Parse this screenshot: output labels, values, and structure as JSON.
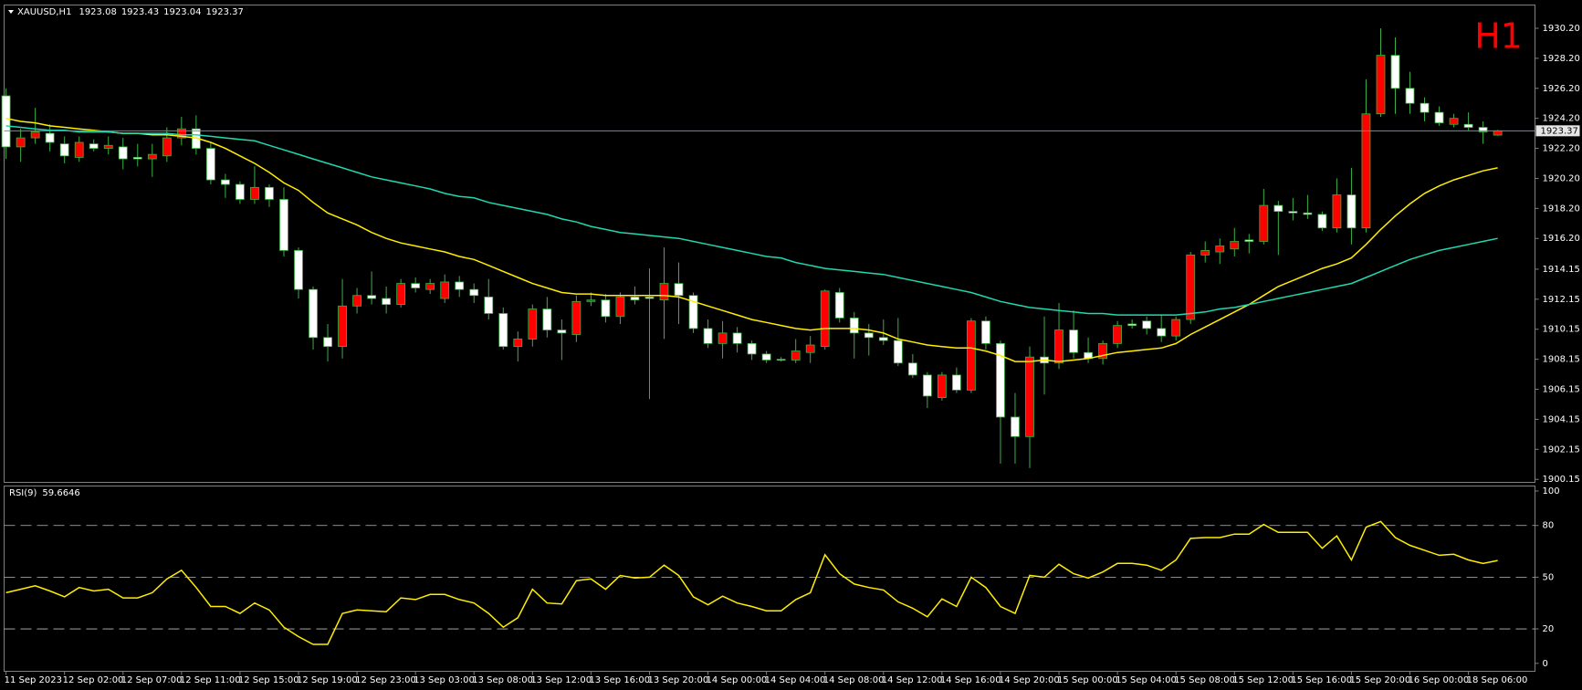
{
  "chart_data": [
    {
      "type": "candlestick",
      "title": "XAUUSD,H1",
      "timeframe": "H1",
      "categories": [
        "11 Sep 2023",
        null,
        null,
        null,
        "12 Sep 02:00",
        null,
        null,
        null,
        "12 Sep 07:00",
        null,
        null,
        null,
        "12 Sep 11:00",
        null,
        null,
        null,
        "12 Sep 15:00",
        null,
        null,
        null,
        "12 Sep 19:00",
        null,
        null,
        null,
        "12 Sep 23:00",
        null,
        null,
        null,
        "13 Sep 03:00",
        null,
        null,
        null,
        "13 Sep 08:00",
        null,
        null,
        null,
        "13 Sep 12:00",
        null,
        null,
        null,
        "13 Sep 16:00",
        null,
        null,
        null,
        "13 Sep 20:00",
        null,
        null,
        null,
        "14 Sep 00:00",
        null,
        null,
        null,
        "14 Sep 04:00",
        null,
        null,
        null,
        "14 Sep 08:00",
        null,
        null,
        null,
        "14 Sep 12:00",
        null,
        null,
        null,
        "14 Sep 16:00",
        null,
        null,
        null,
        "14 Sep 20:00",
        null,
        null,
        null,
        "15 Sep 00:00",
        null,
        null,
        null,
        "15 Sep 04:00",
        null,
        null,
        null,
        "15 Sep 08:00",
        null,
        null,
        null,
        "15 Sep 12:00",
        null,
        null,
        null,
        "15 Sep 16:00",
        null,
        null,
        null,
        "15 Sep 20:00",
        null,
        null,
        null,
        "16 Sep 00:00",
        null,
        null,
        null,
        "18 Sep 06:00",
        null,
        null
      ],
      "open": [
        1925.7,
        1922.3,
        1922.9,
        1923.2,
        1922.5,
        1921.6,
        1922.5,
        1922.2,
        1922.3,
        1921.6,
        1921.5,
        1921.7,
        1922.9,
        1923.5,
        1922.2,
        1920.1,
        1919.8,
        1918.8,
        1919.6,
        1918.8,
        1915.4,
        1912.8,
        1909.6,
        1909.0,
        1911.7,
        1912.4,
        1912.2,
        1911.8,
        1913.2,
        1912.8,
        1912.2,
        1913.3,
        1912.8,
        1912.3,
        1911.2,
        1909.0,
        1909.5,
        1911.5,
        1910.1,
        1909.8,
        1912.0,
        1912.1,
        1911.0,
        1912.3,
        1912.3,
        1912.1,
        1913.2,
        1912.4,
        1910.2,
        1909.2,
        1909.9,
        1909.2,
        1908.5,
        1908.15,
        1908.1,
        1908.6,
        1909.0,
        1912.6,
        1910.9,
        1909.9,
        1909.6,
        1909.4,
        1907.9,
        1907.1,
        1905.6,
        1907.1,
        1906.1,
        1910.7,
        1909.2,
        1904.3,
        1903.0,
        1908.3,
        1907.9,
        1910.1,
        1908.6,
        1908.2,
        1909.2,
        1910.5,
        1910.7,
        1910.2,
        1909.7,
        1910.8,
        1915.1,
        1915.3,
        1915.5,
        1916.1,
        1916.0,
        1918.4,
        1918.0,
        1917.9,
        1917.8,
        1916.9,
        1919.1,
        1916.9,
        1924.5,
        1928.4,
        1926.2,
        1925.2,
        1924.6,
        1923.8,
        1923.8,
        1923.6,
        1923.08
      ],
      "high": [
        1926.2,
        1923.5,
        1924.9,
        1923.8,
        1923.0,
        1923.0,
        1922.8,
        1923.0,
        1922.9,
        1922.5,
        1922.5,
        1923.6,
        1924.3,
        1924.4,
        1922.6,
        1920.5,
        1920.0,
        1921.0,
        1919.8,
        1919.6,
        1915.6,
        1913.0,
        1910.5,
        1913.5,
        1912.9,
        1914.0,
        1913.0,
        1913.5,
        1913.6,
        1913.5,
        1913.8,
        1913.7,
        1913.2,
        1913.5,
        1911.6,
        1910.0,
        1911.8,
        1912.3,
        1910.8,
        1912.4,
        1912.6,
        1912.5,
        1912.6,
        1913.0,
        1914.2,
        1915.6,
        1914.6,
        1912.6,
        1910.8,
        1910.7,
        1910.3,
        1909.4,
        1908.7,
        1908.3,
        1909.5,
        1909.7,
        1912.8,
        1912.9,
        1911.3,
        1910.5,
        1910.8,
        1910.9,
        1908.5,
        1907.3,
        1907.3,
        1907.6,
        1910.9,
        1911.0,
        1909.4,
        1905.9,
        1909.0,
        1911.0,
        1911.9,
        1911.4,
        1909.6,
        1909.4,
        1910.7,
        1910.8,
        1911.0,
        1911.1,
        1911.0,
        1915.3,
        1916.0,
        1916.2,
        1916.9,
        1916.5,
        1919.5,
        1918.7,
        1918.9,
        1919.1,
        1918.0,
        1920.2,
        1920.9,
        1926.8,
        1930.2,
        1929.6,
        1927.3,
        1925.6,
        1925.0,
        1924.5,
        1924.6,
        1924.0,
        1923.43
      ],
      "low": [
        1921.5,
        1921.3,
        1922.5,
        1922.0,
        1921.2,
        1921.3,
        1922.0,
        1921.8,
        1920.8,
        1921.0,
        1920.3,
        1921.3,
        1922.4,
        1921.8,
        1919.8,
        1918.9,
        1918.5,
        1918.5,
        1918.3,
        1915.0,
        1912.2,
        1908.8,
        1908.0,
        1908.2,
        1911.2,
        1911.8,
        1911.2,
        1911.6,
        1912.6,
        1912.5,
        1911.9,
        1912.3,
        1911.9,
        1910.8,
        1908.8,
        1908.0,
        1909.0,
        1909.6,
        1908.1,
        1909.3,
        1911.7,
        1910.6,
        1910.5,
        1911.8,
        1905.5,
        1909.5,
        1910.5,
        1909.9,
        1908.9,
        1908.2,
        1908.6,
        1908.1,
        1907.9,
        1908.0,
        1907.9,
        1907.9,
        1908.8,
        1910.6,
        1908.2,
        1908.4,
        1909.1,
        1907.7,
        1906.9,
        1904.9,
        1905.4,
        1905.9,
        1905.9,
        1908.8,
        1901.2,
        1901.2,
        1900.9,
        1905.8,
        1907.5,
        1908.2,
        1907.9,
        1907.8,
        1908.9,
        1910.2,
        1909.8,
        1909.3,
        1909.4,
        1910.5,
        1914.6,
        1914.5,
        1915.0,
        1915.2,
        1915.8,
        1915.1,
        1917.4,
        1917.5,
        1916.7,
        1916.6,
        1915.8,
        1916.6,
        1924.3,
        1924.5,
        1924.5,
        1924.0,
        1923.7,
        1923.6,
        1923.4,
        1922.5,
        1923.04
      ],
      "close": [
        1922.3,
        1922.9,
        1923.3,
        1922.6,
        1921.7,
        1922.6,
        1922.2,
        1922.4,
        1921.5,
        1921.5,
        1921.8,
        1922.9,
        1923.5,
        1922.2,
        1920.1,
        1919.8,
        1918.8,
        1919.6,
        1918.8,
        1915.4,
        1912.8,
        1909.6,
        1909.0,
        1911.7,
        1912.4,
        1912.2,
        1911.8,
        1913.2,
        1912.9,
        1913.2,
        1913.3,
        1912.8,
        1912.4,
        1911.2,
        1909.0,
        1909.5,
        1911.5,
        1910.1,
        1909.9,
        1912.0,
        1912.1,
        1911.0,
        1912.3,
        1912.1,
        1912.2,
        1913.2,
        1912.4,
        1910.2,
        1909.2,
        1909.9,
        1909.2,
        1908.5,
        1908.1,
        1908.1,
        1908.7,
        1909.1,
        1912.7,
        1910.9,
        1909.9,
        1909.6,
        1909.4,
        1907.9,
        1907.1,
        1905.7,
        1907.1,
        1906.1,
        1910.7,
        1909.2,
        1904.3,
        1903.0,
        1908.3,
        1907.9,
        1910.1,
        1908.6,
        1908.2,
        1909.2,
        1910.4,
        1910.4,
        1910.2,
        1909.7,
        1910.8,
        1915.1,
        1915.4,
        1915.7,
        1916.0,
        1916.0,
        1918.4,
        1918.0,
        1917.9,
        1917.8,
        1916.9,
        1919.1,
        1916.9,
        1924.5,
        1928.4,
        1926.2,
        1925.2,
        1924.6,
        1923.9,
        1924.2,
        1923.6,
        1923.3,
        1923.37
      ],
      "up_color": "#ff0000",
      "down_color": "#ffffff",
      "wick_color": "#3cb043",
      "price_line_color": "#6f8faa",
      "timeframe_color": "#ff0000",
      "series": [
        {
          "color": "#ffee00",
          "values": [
            1924.2,
            1924.0,
            1923.9,
            1923.7,
            1923.6,
            1923.5,
            1923.4,
            1923.3,
            1923.2,
            1923.2,
            1923.1,
            1923.1,
            1923.0,
            1922.9,
            1922.6,
            1922.2,
            1921.7,
            1921.2,
            1920.6,
            1919.9,
            1919.4,
            1918.6,
            1917.9,
            1917.5,
            1917.1,
            1916.6,
            1916.2,
            1915.9,
            1915.7,
            1915.5,
            1915.3,
            1915.0,
            1914.8,
            1914.4,
            1914.0,
            1913.6,
            1913.2,
            1912.9,
            1912.6,
            1912.5,
            1912.5,
            1912.4,
            1912.4,
            1912.4,
            1912.4,
            1912.4,
            1912.3,
            1912.0,
            1911.7,
            1911.4,
            1911.1,
            1910.8,
            1910.6,
            1910.4,
            1910.2,
            1910.1,
            1910.2,
            1910.2,
            1910.2,
            1910.1,
            1909.9,
            1909.5,
            1909.3,
            1909.1,
            1909.0,
            1908.9,
            1908.9,
            1908.7,
            1908.4,
            1908.0,
            1908.0,
            1908.1,
            1908.0,
            1908.1,
            1908.2,
            1908.4,
            1908.6,
            1908.7,
            1908.8,
            1908.9,
            1909.2,
            1909.8,
            1910.3,
            1910.8,
            1911.3,
            1911.8,
            1912.4,
            1913.0,
            1913.4,
            1913.8,
            1914.2,
            1914.5,
            1914.9,
            1915.8,
            1916.8,
            1917.7,
            1918.5,
            1919.2,
            1919.7,
            1920.1,
            1920.4,
            1920.7,
            1920.9
          ]
        },
        {
          "color": "#20d8b0",
          "values": [
            1923.7,
            1923.6,
            1923.5,
            1923.4,
            1923.4,
            1923.3,
            1923.3,
            1923.3,
            1923.2,
            1923.2,
            1923.2,
            1923.2,
            1923.1,
            1923.1,
            1923.0,
            1922.9,
            1922.8,
            1922.7,
            1922.4,
            1922.1,
            1921.8,
            1921.5,
            1921.2,
            1920.9,
            1920.6,
            1920.3,
            1920.1,
            1919.9,
            1919.7,
            1919.5,
            1919.2,
            1919.0,
            1918.9,
            1918.6,
            1918.4,
            1918.2,
            1918.0,
            1917.8,
            1917.5,
            1917.3,
            1917.0,
            1916.8,
            1916.6,
            1916.5,
            1916.4,
            1916.3,
            1916.2,
            1916.0,
            1915.8,
            1915.6,
            1915.4,
            1915.2,
            1915.0,
            1914.9,
            1914.6,
            1914.4,
            1914.2,
            1914.1,
            1914.0,
            1913.9,
            1913.8,
            1913.6,
            1913.4,
            1913.2,
            1913.0,
            1912.8,
            1912.6,
            1912.3,
            1912.0,
            1911.8,
            1911.6,
            1911.5,
            1911.4,
            1911.3,
            1911.2,
            1911.2,
            1911.1,
            1911.1,
            1911.1,
            1911.1,
            1911.1,
            1911.2,
            1911.3,
            1911.5,
            1911.6,
            1911.8,
            1912.0,
            1912.2,
            1912.4,
            1912.6,
            1912.8,
            1913.0,
            1913.2,
            1913.6,
            1914.0,
            1914.4,
            1914.8,
            1915.1,
            1915.4,
            1915.6,
            1915.8,
            1916.0,
            1916.2
          ]
        }
      ],
      "ylim": [
        1899.95,
        1931.75
      ],
      "yticks": [
        {
          "value": 1930.2,
          "label": "1930.20"
        },
        {
          "value": 1928.2,
          "label": "1928.20"
        },
        {
          "value": 1926.2,
          "label": "1926.20"
        },
        {
          "value": 1924.2,
          "label": "1924.20"
        },
        {
          "value": 1922.2,
          "label": "1922.20"
        },
        {
          "value": 1920.2,
          "label": "1920.20"
        },
        {
          "value": 1918.2,
          "label": "1918.20"
        },
        {
          "value": 1916.2,
          "label": "1916.20"
        },
        1914.15,
        1912.15,
        1910.15,
        1908.15,
        1906.15,
        1904.15,
        1902.15,
        1900.15
      ]
    },
    {
      "type": "line",
      "title": "RSI(9)",
      "series": [
        {
          "color": "#ffee00",
          "values": [
            41,
            43,
            45,
            42,
            38.6,
            44,
            42,
            43,
            38,
            38,
            41,
            49,
            54,
            44,
            33,
            33,
            29,
            35,
            31,
            21,
            15.5,
            11,
            11,
            29,
            31,
            30.5,
            30,
            38,
            37,
            40,
            40,
            37,
            35,
            29,
            21,
            26.5,
            43,
            35,
            34.5,
            48,
            49,
            43,
            51,
            49.5,
            50,
            57,
            51,
            38.6,
            34,
            39,
            35,
            33,
            30.5,
            30.5,
            37,
            41,
            63,
            52,
            46,
            44,
            42.6,
            35.7,
            32,
            27,
            37.4,
            33,
            50,
            44,
            33,
            29,
            51,
            50,
            57.5,
            52,
            49.5,
            53,
            58,
            58,
            57,
            54,
            60,
            72.5,
            73,
            73,
            75,
            75,
            80.6,
            76,
            76,
            76,
            66.8,
            74,
            60,
            79,
            82.3,
            73,
            68.5,
            65.6,
            62.7,
            63.3,
            60,
            58,
            59.6646
          ]
        }
      ],
      "ylim": [
        -4.6,
        102.9
      ],
      "yticks": [
        100,
        80,
        50,
        20,
        0
      ],
      "levels": [
        80,
        50,
        20
      ],
      "level_color": "#bbbbbb"
    }
  ]
}
